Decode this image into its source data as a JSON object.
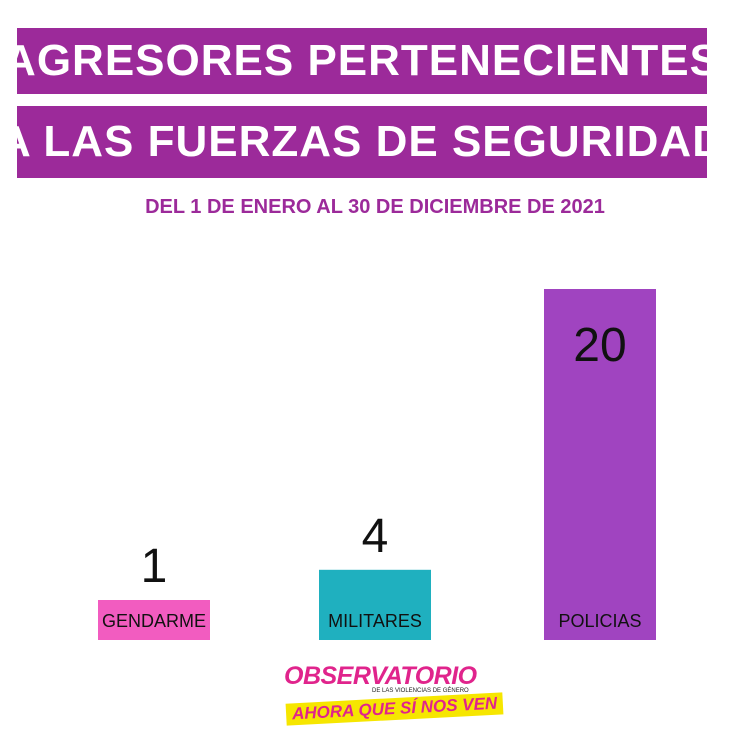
{
  "title": {
    "line1": "AGRESORES PERTENECIENTES",
    "line2": "A LAS FUERZAS DE SEGURIDAD"
  },
  "subtitle": "DEL 1 DE ENERO AL 30 DE DICIEMBRE DE 2021",
  "colors": {
    "title_band": "#9c2a9a",
    "gendarme": "#f25cc0",
    "militares": "#1fb0bf",
    "policias": "#a044c0"
  },
  "chart_data": {
    "type": "bar",
    "categories": [
      "GENDARME",
      "MILITARES",
      "POLICIAS"
    ],
    "values": [
      1,
      4,
      20
    ],
    "colors": [
      "#f25cc0",
      "#1fb0bf",
      "#a044c0"
    ],
    "title": "AGRESORES PERTENECIENTES A LAS FUERZAS DE SEGURIDAD",
    "subtitle": "DEL 1 DE ENERO AL 30 DE DICIEMBRE DE 2021",
    "xlabel": "",
    "ylabel": "",
    "ylim": [
      0,
      20
    ],
    "grid": false,
    "legend": "none"
  },
  "logo": {
    "main": "OBSERVATORIO",
    "small": "DE LAS VIOLENCIAS DE GÉNERO",
    "band": "AHORA QUE SÍ NOS VEN"
  }
}
